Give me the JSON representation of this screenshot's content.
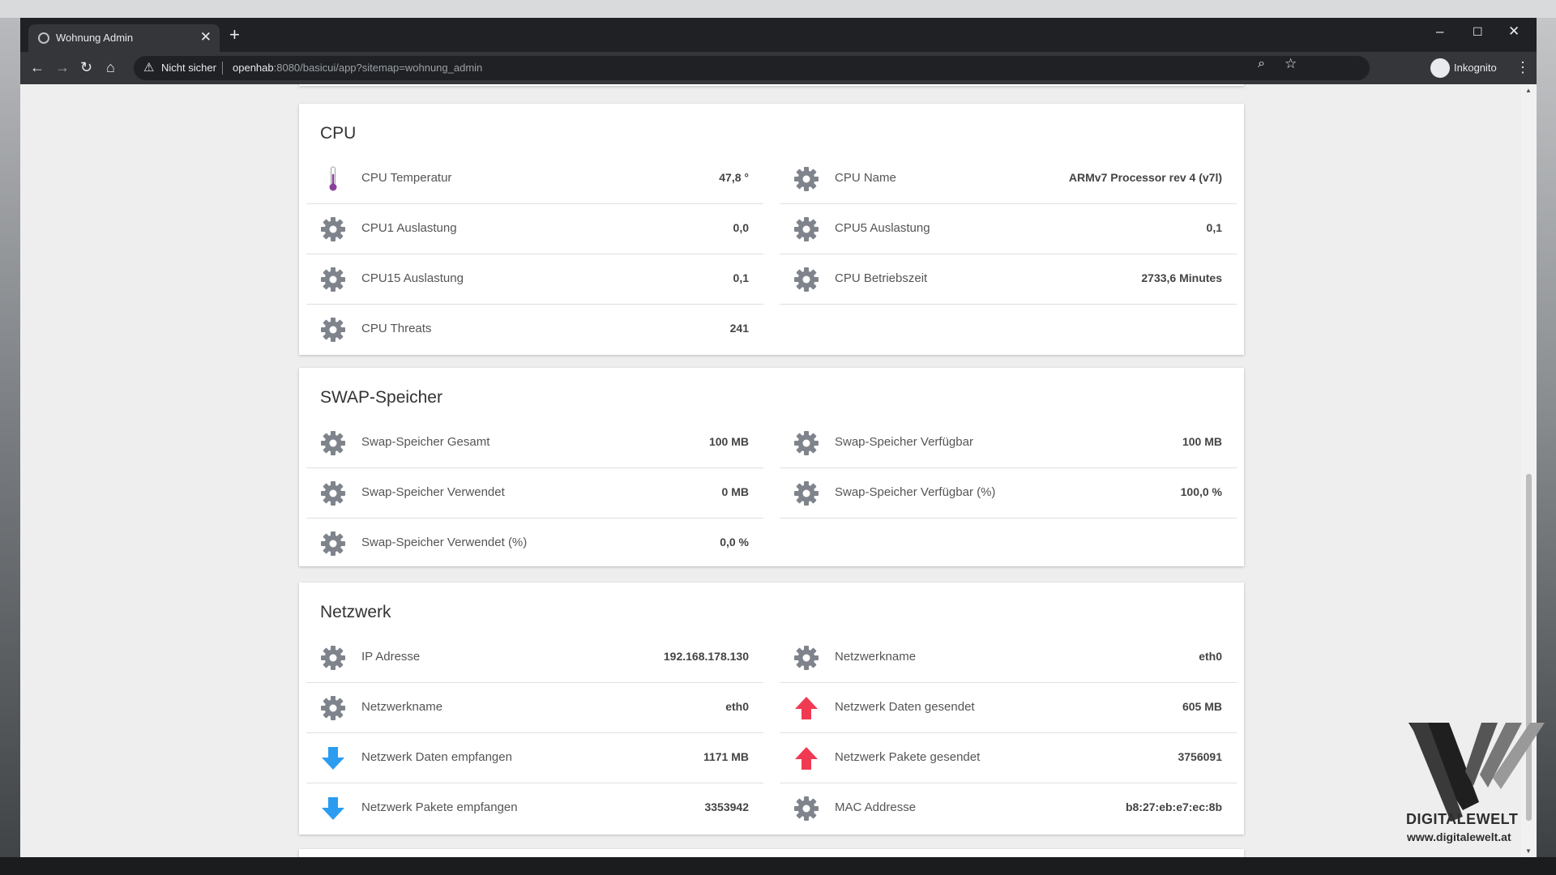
{
  "browser": {
    "tab_title": "Wohnung Admin",
    "tab_close": "✕",
    "new_tab": "+",
    "window_controls": {
      "minimize": "–",
      "maximize": "☐",
      "close": "✕"
    },
    "security_label": "Nicht sicher",
    "url_host": "openhab",
    "url_rest": ":8080/basicui/app?sitemap=wohnung_admin",
    "profile_label": "Inkognito",
    "icons": {
      "back": "arrow-left-icon",
      "forward": "arrow-right-icon",
      "reload": "reload-icon",
      "home": "home-icon",
      "zoom": "zoom-icon",
      "bookmark": "star-icon",
      "menu": "kebab-menu-icon",
      "warning": "warning-icon"
    }
  },
  "sections": {
    "cpu": {
      "title": "CPU",
      "rows": [
        {
          "label": "CPU Temperatur",
          "value": "47,8 °",
          "icon": "thermometer-icon"
        },
        {
          "label": "CPU Name",
          "value": "ARMv7 Processor rev 4 (v7l)",
          "icon": "gear-icon"
        },
        {
          "label": "CPU1 Auslastung",
          "value": "0,0",
          "icon": "gear-icon"
        },
        {
          "label": "CPU5 Auslastung",
          "value": "0,1",
          "icon": "gear-icon"
        },
        {
          "label": "CPU15 Auslastung",
          "value": "0,1",
          "icon": "gear-icon"
        },
        {
          "label": "CPU Betriebszeit",
          "value": "2733,6 Minutes",
          "icon": "gear-icon"
        },
        {
          "label": "CPU Threats",
          "value": "241",
          "icon": "gear-icon"
        }
      ]
    },
    "swap": {
      "title": "SWAP-Speicher",
      "rows": [
        {
          "label": "Swap-Speicher Gesamt",
          "value": "100 MB",
          "icon": "gear-icon"
        },
        {
          "label": "Swap-Speicher Verfügbar",
          "value": "100 MB",
          "icon": "gear-icon"
        },
        {
          "label": "Swap-Speicher Verwendet",
          "value": "0 MB",
          "icon": "gear-icon"
        },
        {
          "label": "Swap-Speicher Verfügbar (%)",
          "value": "100,0 %",
          "icon": "gear-icon"
        },
        {
          "label": "Swap-Speicher Verwendet (%)",
          "value": "0,0 %",
          "icon": "gear-icon"
        }
      ]
    },
    "network": {
      "title": "Netzwerk",
      "rows": [
        {
          "label": "IP Adresse",
          "value": "192.168.178.130",
          "icon": "gear-icon"
        },
        {
          "label": "Netzwerkname",
          "value": "eth0",
          "icon": "gear-icon"
        },
        {
          "label": "Netzwerkname",
          "value": "eth0",
          "icon": "gear-icon"
        },
        {
          "label": "Netzwerk Daten gesendet",
          "value": "605 MB",
          "icon": "arrow-up-icon"
        },
        {
          "label": "Netzwerk Daten empfangen",
          "value": "1171 MB",
          "icon": "arrow-down-icon"
        },
        {
          "label": "Netzwerk Pakete gesendet",
          "value": "3756091",
          "icon": "arrow-up-icon"
        },
        {
          "label": "Netzwerk Pakete empfangen",
          "value": "3353942",
          "icon": "arrow-down-icon"
        },
        {
          "label": "MAC Addresse",
          "value": "b8:27:eb:e7:ec:8b",
          "icon": "gear-icon"
        }
      ]
    }
  },
  "watermark": {
    "name": "DIGITALEWELT",
    "url": "www.digitalewelt.at"
  },
  "colors": {
    "gear": "#7f848c",
    "arrow_up": "#f03a52",
    "arrow_down": "#2b9cf0",
    "thermometer": "#8a3f9c",
    "card_bg": "#ffffff",
    "page_bg": "#eeeeee"
  }
}
